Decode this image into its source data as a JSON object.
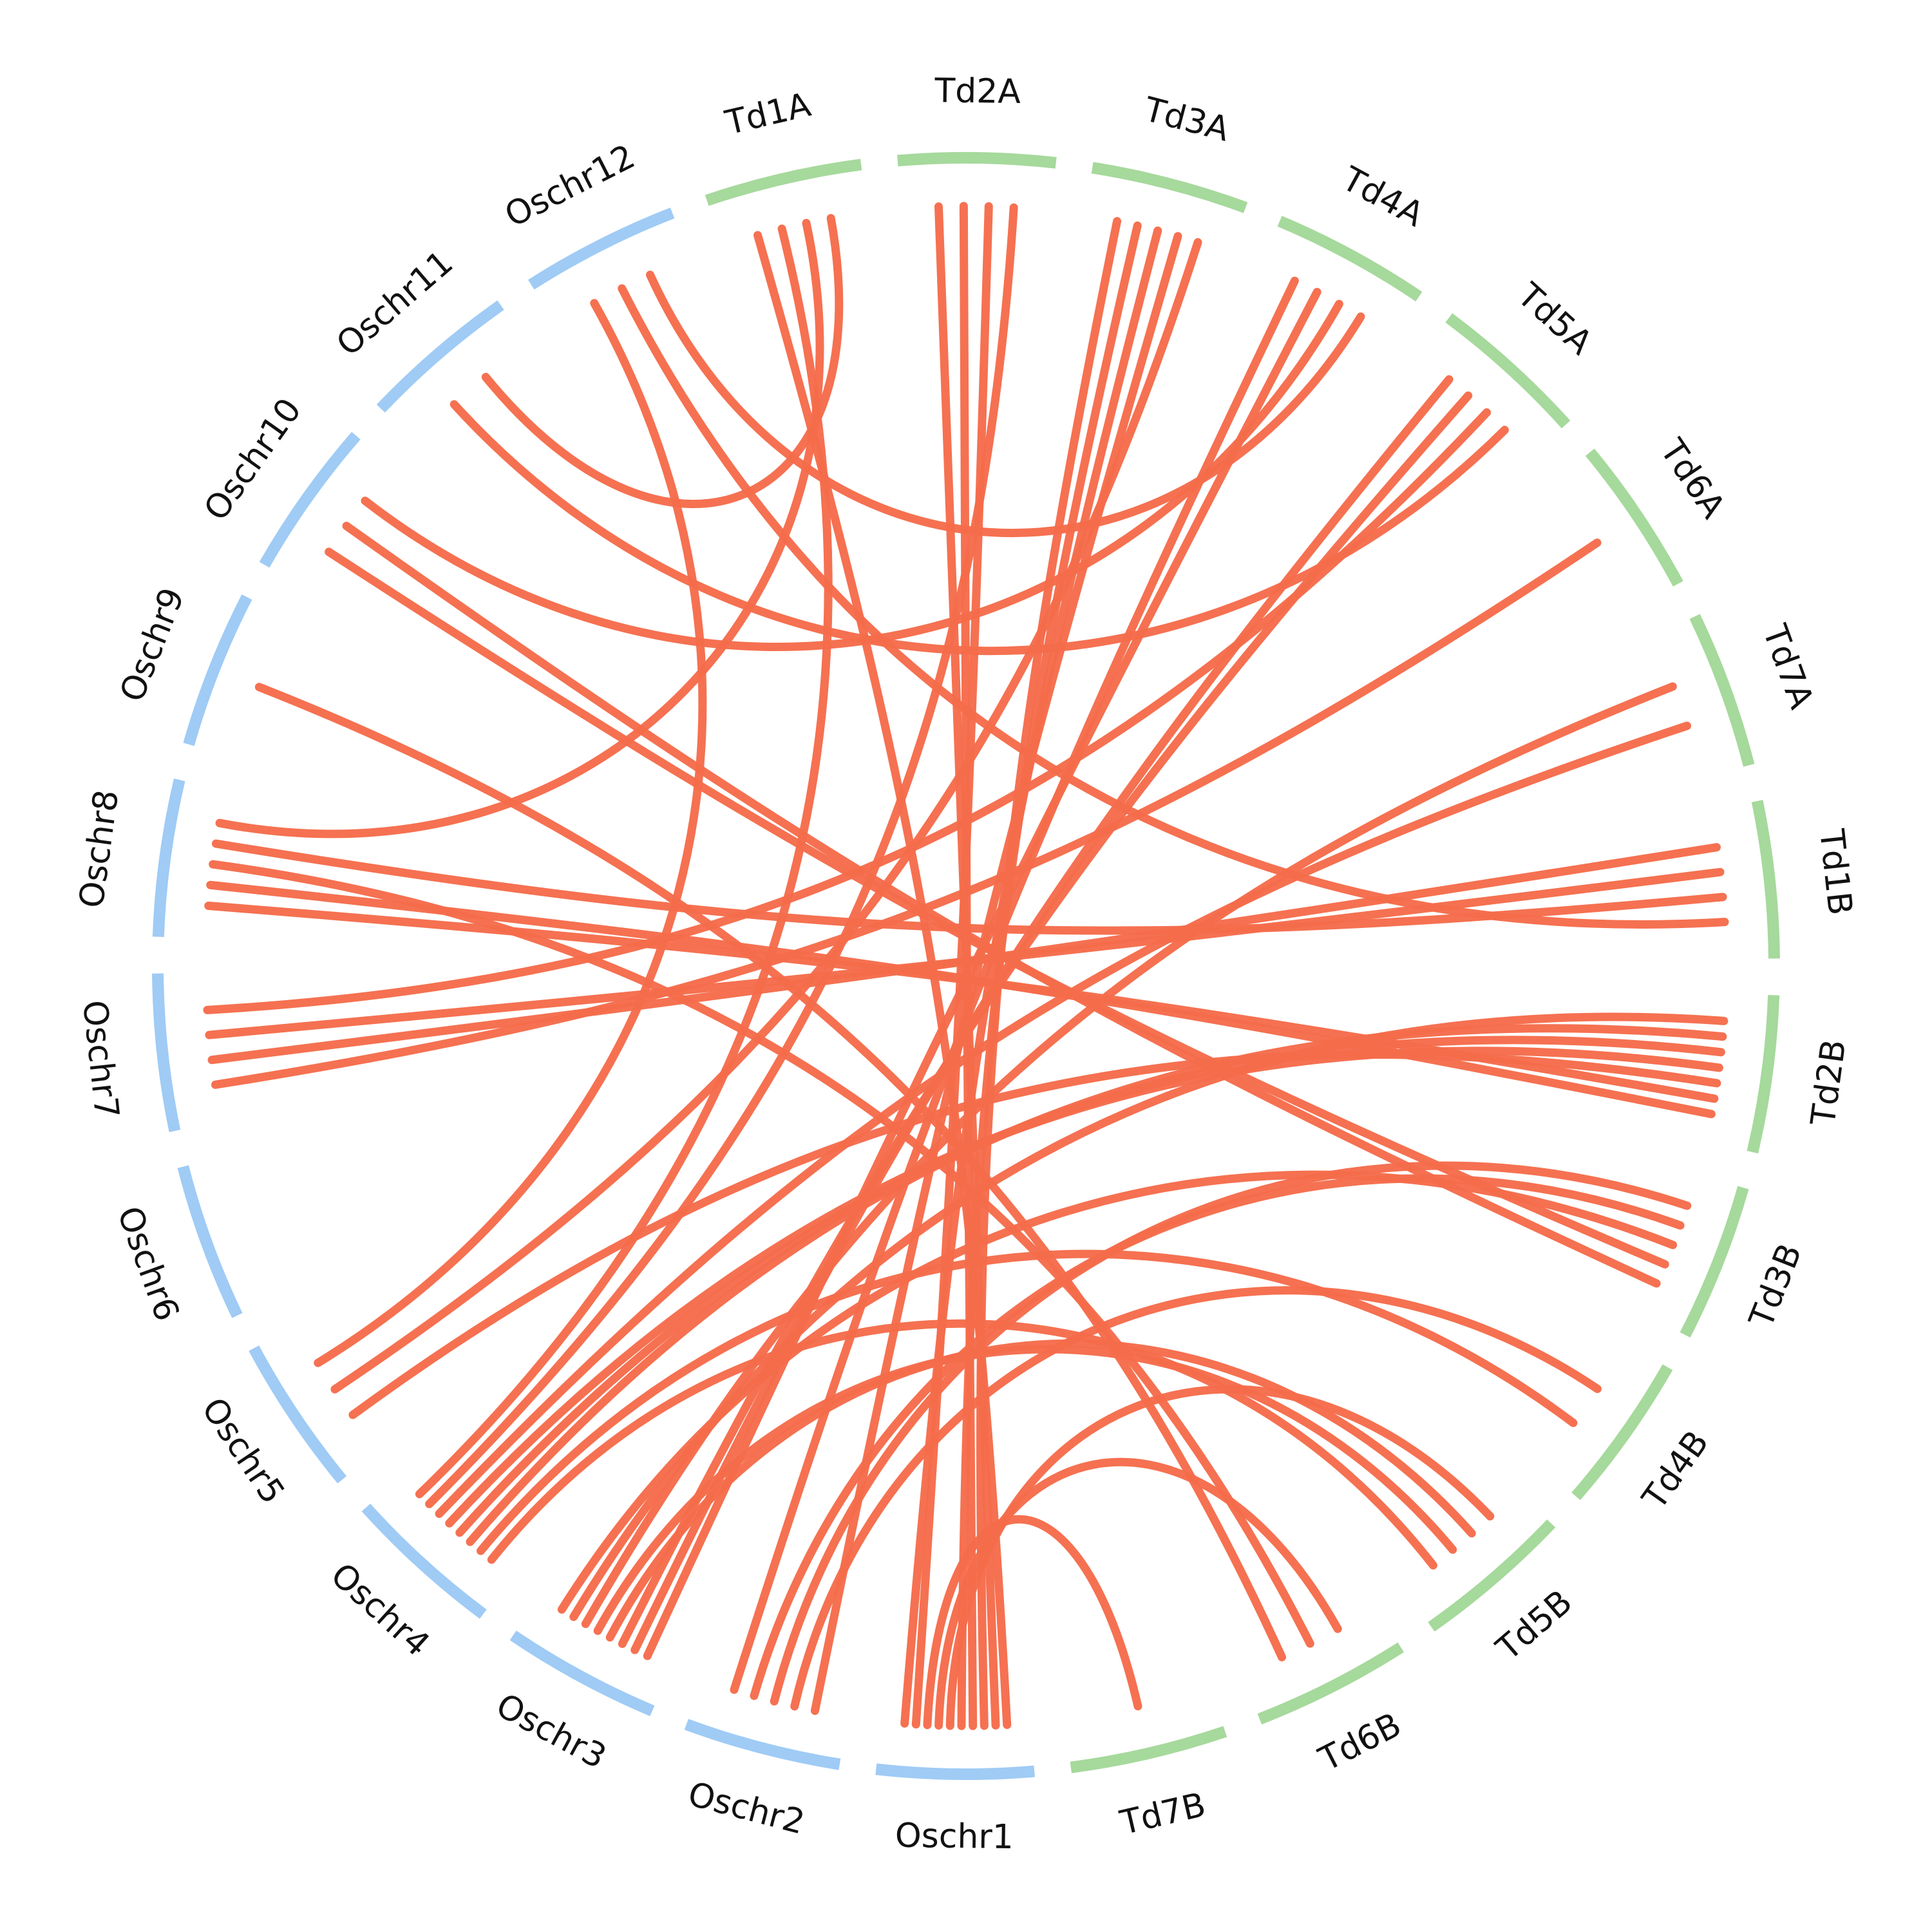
{
  "colors": {
    "rice_segment": "#9fcbf5",
    "wheat_segment": "#a6d99c",
    "link": "#f56c4b",
    "label": "#111111"
  },
  "segments": [
    {
      "id": "oschr1",
      "label": "Oschr1",
      "group": "rice"
    },
    {
      "id": "oschr2",
      "label": "Oschr2",
      "group": "rice"
    },
    {
      "id": "oschr3",
      "label": "Oschr3",
      "group": "rice"
    },
    {
      "id": "oschr4",
      "label": "Oschr4",
      "group": "rice"
    },
    {
      "id": "oschr5",
      "label": "Oschr5",
      "group": "rice"
    },
    {
      "id": "oschr6",
      "label": "Oschr6",
      "group": "rice"
    },
    {
      "id": "oschr7",
      "label": "Oschr7",
      "group": "rice"
    },
    {
      "id": "oschr8",
      "label": "Oschr8",
      "group": "rice"
    },
    {
      "id": "oschr9",
      "label": "Oschr9",
      "group": "rice"
    },
    {
      "id": "oschr10",
      "label": "Oschr10",
      "group": "rice"
    },
    {
      "id": "oschr11",
      "label": "Oschr11",
      "group": "rice"
    },
    {
      "id": "oschr12",
      "label": "Oschr12",
      "group": "rice"
    },
    {
      "id": "td1a",
      "label": "Td1A",
      "group": "wheat"
    },
    {
      "id": "td2a",
      "label": "Td2A",
      "group": "wheat"
    },
    {
      "id": "td3a",
      "label": "Td3A",
      "group": "wheat"
    },
    {
      "id": "td4a",
      "label": "Td4A",
      "group": "wheat"
    },
    {
      "id": "td5a",
      "label": "Td5A",
      "group": "wheat"
    },
    {
      "id": "td6a",
      "label": "Td6A",
      "group": "wheat"
    },
    {
      "id": "td7a",
      "label": "Td7A",
      "group": "wheat"
    },
    {
      "id": "td1b",
      "label": "Td1B",
      "group": "wheat"
    },
    {
      "id": "td2b",
      "label": "Td2B",
      "group": "wheat"
    },
    {
      "id": "td3b",
      "label": "Td3B",
      "group": "wheat"
    },
    {
      "id": "td4b",
      "label": "Td4B",
      "group": "wheat"
    },
    {
      "id": "td5b",
      "label": "Td5B",
      "group": "wheat"
    },
    {
      "id": "td6b",
      "label": "Td6B",
      "group": "wheat"
    },
    {
      "id": "td7b",
      "label": "Td7B",
      "group": "wheat"
    }
  ],
  "links": [
    {
      "from": "oschr1",
      "to": "td1a"
    },
    {
      "from": "oschr1",
      "to": "td2a"
    },
    {
      "from": "oschr1",
      "to": "td3a"
    },
    {
      "from": "oschr1",
      "to": "td2a"
    },
    {
      "from": "oschr1",
      "to": "td3a"
    },
    {
      "from": "oschr1",
      "to": "td5b"
    },
    {
      "from": "oschr1",
      "to": "td6b"
    },
    {
      "from": "oschr1",
      "to": "td7b"
    },
    {
      "from": "oschr1",
      "to": "td2a"
    },
    {
      "from": "oschr1",
      "to": "td3a"
    },
    {
      "from": "oschr2",
      "to": "td3a"
    },
    {
      "from": "oschr2",
      "to": "td4b"
    },
    {
      "from": "oschr2",
      "to": "td3b"
    },
    {
      "from": "oschr2",
      "to": "td3b"
    },
    {
      "from": "oschr2",
      "to": "td4a"
    },
    {
      "from": "oschr3",
      "to": "td4a"
    },
    {
      "from": "oschr3",
      "to": "td5a"
    },
    {
      "from": "oschr3",
      "to": "td5a"
    },
    {
      "from": "oschr3",
      "to": "td5b"
    },
    {
      "from": "oschr3",
      "to": "td5b"
    },
    {
      "from": "oschr3",
      "to": "td7a"
    },
    {
      "from": "oschr3",
      "to": "td2b"
    },
    {
      "from": "oschr3",
      "to": "td3b"
    },
    {
      "from": "oschr4",
      "to": "td5b"
    },
    {
      "from": "oschr4",
      "to": "td4b"
    },
    {
      "from": "oschr4",
      "to": "td2b"
    },
    {
      "from": "oschr4",
      "to": "td2b"
    },
    {
      "from": "oschr4",
      "to": "td2b"
    },
    {
      "from": "oschr4",
      "to": "td7a"
    },
    {
      "from": "oschr4",
      "to": "td2a"
    },
    {
      "from": "oschr4",
      "to": "td1a"
    },
    {
      "from": "oschr5",
      "to": "td2b"
    },
    {
      "from": "oschr5",
      "to": "td3a"
    },
    {
      "from": "oschr5",
      "to": "oschr12"
    },
    {
      "from": "oschr7",
      "to": "td6a"
    },
    {
      "from": "oschr7",
      "to": "td1b"
    },
    {
      "from": "oschr7",
      "to": "td1b"
    },
    {
      "from": "oschr7",
      "to": "td5a"
    },
    {
      "from": "oschr8",
      "to": "td2b"
    },
    {
      "from": "oschr8",
      "to": "td2b"
    },
    {
      "from": "oschr8",
      "to": "td6b"
    },
    {
      "from": "oschr8",
      "to": "td1b"
    },
    {
      "from": "oschr8",
      "to": "td1a"
    },
    {
      "from": "oschr9",
      "to": "td6b"
    },
    {
      "from": "oschr10",
      "to": "td3b"
    },
    {
      "from": "oschr10",
      "to": "td3b"
    },
    {
      "from": "oschr10",
      "to": "td4a"
    },
    {
      "from": "oschr11",
      "to": "td5a"
    },
    {
      "from": "oschr11",
      "to": "td1a"
    },
    {
      "from": "oschr12",
      "to": "td1b"
    },
    {
      "from": "oschr12",
      "to": "td4a"
    }
  ]
}
